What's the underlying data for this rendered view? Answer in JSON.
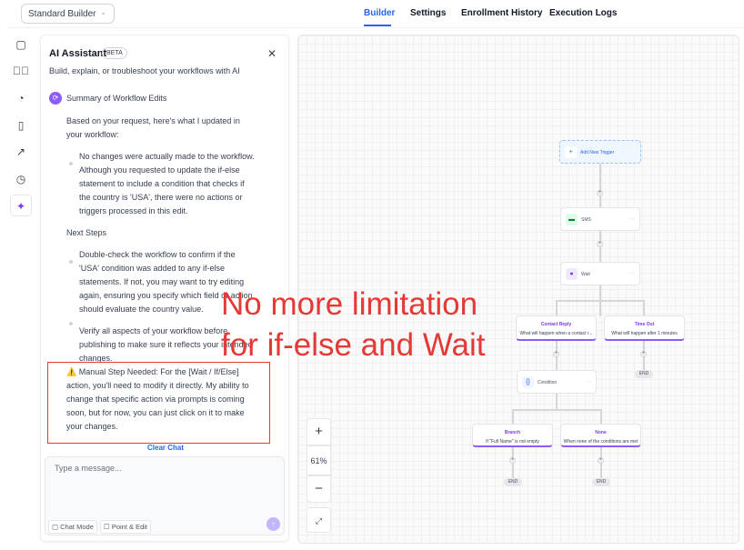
{
  "header": {
    "builder_select": "Standard Builder",
    "tabs": [
      {
        "label": "Builder",
        "active": true
      },
      {
        "label": "Settings"
      },
      {
        "label": "Enrollment History"
      },
      {
        "label": "Execution Logs"
      }
    ]
  },
  "rail": {
    "icons": [
      "chat-icon",
      "check-circle-icon",
      "pie-chart-icon",
      "document-icon",
      "external-link-icon",
      "clock-icon",
      "sparkle-icon"
    ]
  },
  "assistant": {
    "title": "AI Assistant",
    "badge": "BETA",
    "subtitle": "Build, explain, or troubleshoot your workflows with AI",
    "summary_title": "Summary of Workflow Edits",
    "intro": "Based on your request, here's what I updated in your workflow:",
    "bullets1": [
      "No changes were actually made to the workflow. Although you requested to update the if-else statement to include a condition that checks if the country is 'USA', there were no actions or triggers processed in this edit."
    ],
    "next_steps": "Next Steps",
    "bullets2": [
      "Double-check the workflow to confirm if the 'USA' condition was added to any if-else statements. If not, you may want to try editing again, ensuring you specify which field or action should evaluate the country value.",
      "Verify all aspects of your workflow before publishing to make sure it reflects your intended changes."
    ],
    "manual_note": "⚠️ Manual Step Needed: For the [Wait / If/Else] action, you'll need to modify it directly. My ability to change that specific action via prompts is coming soon, but for now, you can just click on it to make your changes.",
    "clear_chat": "Clear Chat",
    "input_placeholder": "Type a message...",
    "chat_mode": "Chat Mode",
    "point_edit": "Point & Edit"
  },
  "canvas": {
    "trigger": "Add New Trigger",
    "sms": "SMS",
    "wait": "Wait",
    "contact_reply": {
      "title": "Contact Reply",
      "desc": "What will happen when a contact r..."
    },
    "time_out": {
      "title": "Time Out",
      "desc": "What will happen after 1 minutes"
    },
    "condition": "Condition",
    "branch": {
      "title": "Branch",
      "desc": "If \"Full Name\" is not empty"
    },
    "none": {
      "title": "None",
      "desc": "When none of the conditions are met"
    },
    "end": "END",
    "zoom": "61%"
  },
  "overlay": {
    "line1": "No more limitation",
    "line2": "for if-else and Wait",
    "color": "#e53935"
  },
  "colors": {
    "accent": "#2563eb",
    "purple": "#8b5cf6"
  }
}
